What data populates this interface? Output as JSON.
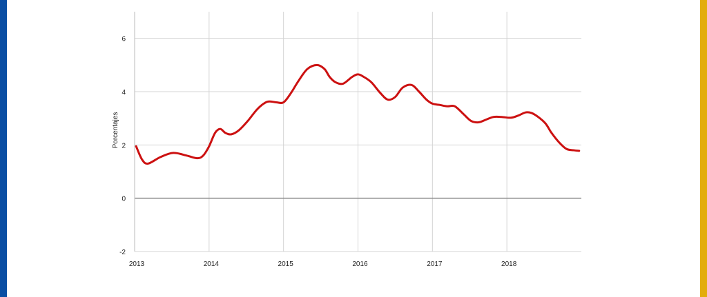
{
  "frame": {
    "left_bar_color": "#0a4ea3",
    "right_bar_color": "#e3ad0c"
  },
  "chart_data": {
    "type": "line",
    "title": "",
    "xlabel": "",
    "ylabel": "Porcentajes",
    "xlim": [
      2013.0,
      2019.0
    ],
    "ylim": [
      -2,
      7
    ],
    "xticks": [
      "2013",
      "2014",
      "2015",
      "2016",
      "2017",
      "2018"
    ],
    "yticks": [
      "-2",
      "0",
      "2",
      "4",
      "6"
    ],
    "grid": true,
    "zero_line": true,
    "legend": "none",
    "series": [
      {
        "color": "#cc1111",
        "x": [
          2013.02,
          2013.1,
          2013.18,
          2013.35,
          2013.52,
          2013.7,
          2013.84,
          2013.92,
          2014.0,
          2014.08,
          2014.15,
          2014.22,
          2014.3,
          2014.4,
          2014.52,
          2014.65,
          2014.78,
          2014.9,
          2015.0,
          2015.1,
          2015.2,
          2015.32,
          2015.45,
          2015.55,
          2015.62,
          2015.7,
          2015.8,
          2015.92,
          2016.0,
          2016.08,
          2016.18,
          2016.3,
          2016.4,
          2016.5,
          2016.6,
          2016.72,
          2016.82,
          2016.92,
          2017.0,
          2017.1,
          2017.2,
          2017.3,
          2017.42,
          2017.52,
          2017.62,
          2017.72,
          2017.82,
          2017.93,
          2018.05,
          2018.15,
          2018.25,
          2018.33,
          2018.42,
          2018.52,
          2018.6,
          2018.7,
          2018.8,
          2018.9,
          2018.97
        ],
        "values": [
          1.95,
          1.45,
          1.3,
          1.55,
          1.7,
          1.6,
          1.5,
          1.6,
          1.95,
          2.45,
          2.6,
          2.45,
          2.4,
          2.55,
          2.9,
          3.35,
          3.62,
          3.6,
          3.6,
          3.95,
          4.4,
          4.85,
          5.0,
          4.85,
          4.55,
          4.35,
          4.3,
          4.55,
          4.65,
          4.55,
          4.35,
          3.95,
          3.7,
          3.8,
          4.15,
          4.25,
          4.0,
          3.7,
          3.55,
          3.5,
          3.45,
          3.45,
          3.15,
          2.9,
          2.85,
          2.95,
          3.05,
          3.05,
          3.02,
          3.1,
          3.22,
          3.2,
          3.05,
          2.8,
          2.45,
          2.1,
          1.85,
          1.8,
          1.78
        ]
      }
    ]
  }
}
